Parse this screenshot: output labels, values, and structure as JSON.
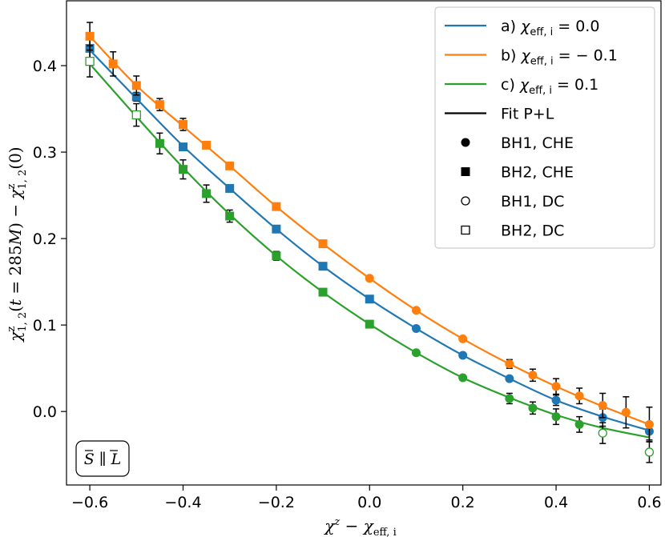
{
  "chart_data": {
    "type": "scatter",
    "xlabel": "χ^z − χ_eff, i",
    "ylabel": "χ^z_1, 2(t = 285M) − χ^z_1, 2(0)",
    "xlim": [
      -0.65,
      0.625
    ],
    "ylim": [
      -0.085,
      0.475
    ],
    "x_ticks": [
      -0.6,
      -0.4,
      -0.2,
      0.0,
      0.2,
      0.4,
      0.6
    ],
    "x_tick_labels": [
      "−0.6",
      "−0.4",
      "−0.2",
      "0.0",
      "0.2",
      "0.4",
      "0.6"
    ],
    "y_ticks": [
      0.0,
      0.1,
      0.2,
      0.3,
      0.4
    ],
    "y_tick_labels": [
      "0.0",
      "0.1",
      "0.2",
      "0.3",
      "0.4"
    ],
    "grid": false,
    "legend_position": "top-right",
    "annotation": "S ∥ L",
    "colors": {
      "a": "#1f77b4",
      "b": "#ff7f0e",
      "c": "#2ca02c",
      "fit": "#000000"
    },
    "series": [
      {
        "key": "a",
        "name": "a) χ_eff, i = 0.0",
        "color": "#1f77b4",
        "fit_x": [
          -0.6,
          -0.5,
          -0.4,
          -0.3,
          -0.2,
          -0.1,
          0.0,
          0.1,
          0.2,
          0.3,
          0.4,
          0.5,
          0.6
        ],
        "fit_y": [
          0.418,
          0.362,
          0.307,
          0.258,
          0.211,
          0.168,
          0.13,
          0.096,
          0.065,
          0.038,
          0.013,
          -0.006,
          -0.022
        ],
        "points": [
          {
            "x": -0.6,
            "y": 0.42,
            "marker": "square",
            "filled": true,
            "err": 0.015
          },
          {
            "x": -0.5,
            "y": 0.364,
            "marker": "square",
            "filled": true,
            "err": 0.005
          },
          {
            "x": -0.4,
            "y": 0.306,
            "marker": "square",
            "filled": true,
            "err": 0.0
          },
          {
            "x": -0.3,
            "y": 0.258,
            "marker": "square",
            "filled": true,
            "err": 0.0
          },
          {
            "x": -0.2,
            "y": 0.211,
            "marker": "square",
            "filled": true,
            "err": 0.0
          },
          {
            "x": -0.1,
            "y": 0.168,
            "marker": "square",
            "filled": true,
            "err": 0.0
          },
          {
            "x": 0.0,
            "y": 0.13,
            "marker": "square",
            "filled": true,
            "err": 0.0
          },
          {
            "x": 0.1,
            "y": 0.096,
            "marker": "circle",
            "filled": true,
            "err": 0.0
          },
          {
            "x": 0.2,
            "y": 0.065,
            "marker": "circle",
            "filled": true,
            "err": 0.0
          },
          {
            "x": 0.3,
            "y": 0.038,
            "marker": "circle",
            "filled": true,
            "err": 0.0
          },
          {
            "x": 0.4,
            "y": 0.013,
            "marker": "circle",
            "filled": true,
            "err": 0.006
          },
          {
            "x": 0.5,
            "y": -0.007,
            "marker": "circle",
            "filled": true,
            "err": 0.01
          },
          {
            "x": 0.6,
            "y": -0.023,
            "marker": "circle",
            "filled": true,
            "err": 0.01
          }
        ]
      },
      {
        "key": "b",
        "name": "b) χ_eff, i = − 0.1",
        "color": "#ff7f0e",
        "fit_x": [
          -0.6,
          -0.5,
          -0.4,
          -0.3,
          -0.2,
          -0.1,
          0.0,
          0.1,
          0.2,
          0.3,
          0.4,
          0.5,
          0.6
        ],
        "fit_y": [
          0.434,
          0.377,
          0.33,
          0.284,
          0.237,
          0.194,
          0.154,
          0.117,
          0.084,
          0.055,
          0.029,
          0.006,
          -0.015
        ],
        "points": [
          {
            "x": -0.6,
            "y": 0.434,
            "marker": "square",
            "filled": true,
            "err": 0.016
          },
          {
            "x": -0.55,
            "y": 0.402,
            "marker": "square",
            "filled": true,
            "err": 0.014
          },
          {
            "x": -0.5,
            "y": 0.377,
            "marker": "square",
            "filled": true,
            "err": 0.011
          },
          {
            "x": -0.45,
            "y": 0.355,
            "marker": "square",
            "filled": true,
            "err": 0.007
          },
          {
            "x": -0.4,
            "y": 0.332,
            "marker": "square",
            "filled": true,
            "err": 0.007
          },
          {
            "x": -0.35,
            "y": 0.308,
            "marker": "square",
            "filled": true,
            "err": 0.0
          },
          {
            "x": -0.3,
            "y": 0.284,
            "marker": "square",
            "filled": true,
            "err": 0.0
          },
          {
            "x": -0.2,
            "y": 0.237,
            "marker": "square",
            "filled": true,
            "err": 0.0
          },
          {
            "x": -0.1,
            "y": 0.194,
            "marker": "square",
            "filled": true,
            "err": 0.0
          },
          {
            "x": 0.0,
            "y": 0.154,
            "marker": "circle",
            "filled": true,
            "err": 0.0
          },
          {
            "x": 0.1,
            "y": 0.117,
            "marker": "circle",
            "filled": true,
            "err": 0.0
          },
          {
            "x": 0.2,
            "y": 0.084,
            "marker": "circle",
            "filled": true,
            "err": 0.0
          },
          {
            "x": 0.3,
            "y": 0.055,
            "marker": "circle",
            "filled": true,
            "err": 0.005
          },
          {
            "x": 0.35,
            "y": 0.042,
            "marker": "circle",
            "filled": true,
            "err": 0.007
          },
          {
            "x": 0.4,
            "y": 0.029,
            "marker": "circle",
            "filled": true,
            "err": 0.009
          },
          {
            "x": 0.45,
            "y": 0.018,
            "marker": "circle",
            "filled": true,
            "err": 0.009
          },
          {
            "x": 0.5,
            "y": 0.007,
            "marker": "circle",
            "filled": true,
            "err": 0.014
          },
          {
            "x": 0.55,
            "y": -0.001,
            "marker": "circle",
            "filled": true,
            "err": 0.018
          },
          {
            "x": 0.6,
            "y": -0.015,
            "marker": "circle",
            "filled": true,
            "err": 0.02
          }
        ]
      },
      {
        "key": "c",
        "name": "c) χ_eff, i = 0.1",
        "color": "#2ca02c",
        "fit_x": [
          -0.6,
          -0.5,
          -0.4,
          -0.3,
          -0.2,
          -0.1,
          0.0,
          0.1,
          0.2,
          0.3,
          0.4,
          0.5,
          0.6
        ],
        "fit_y": [
          0.402,
          0.341,
          0.282,
          0.228,
          0.18,
          0.138,
          0.101,
          0.068,
          0.039,
          0.016,
          -0.004,
          -0.019,
          -0.03
        ],
        "points": [
          {
            "x": -0.6,
            "y": 0.405,
            "marker": "square",
            "filled": false,
            "err": 0.018
          },
          {
            "x": -0.5,
            "y": 0.343,
            "marker": "square",
            "filled": false,
            "err": 0.013
          },
          {
            "x": -0.45,
            "y": 0.31,
            "marker": "square",
            "filled": true,
            "err": 0.012
          },
          {
            "x": -0.4,
            "y": 0.28,
            "marker": "square",
            "filled": true,
            "err": 0.011
          },
          {
            "x": -0.35,
            "y": 0.252,
            "marker": "square",
            "filled": true,
            "err": 0.01
          },
          {
            "x": -0.3,
            "y": 0.226,
            "marker": "square",
            "filled": true,
            "err": 0.007
          },
          {
            "x": -0.2,
            "y": 0.18,
            "marker": "square",
            "filled": true,
            "err": 0.005
          },
          {
            "x": -0.1,
            "y": 0.138,
            "marker": "square",
            "filled": true,
            "err": 0.0
          },
          {
            "x": 0.0,
            "y": 0.101,
            "marker": "square",
            "filled": true,
            "err": 0.0
          },
          {
            "x": 0.1,
            "y": 0.068,
            "marker": "circle",
            "filled": true,
            "err": 0.0
          },
          {
            "x": 0.2,
            "y": 0.039,
            "marker": "circle",
            "filled": true,
            "err": 0.0
          },
          {
            "x": 0.3,
            "y": 0.015,
            "marker": "circle",
            "filled": true,
            "err": 0.006
          },
          {
            "x": 0.35,
            "y": 0.004,
            "marker": "circle",
            "filled": true,
            "err": 0.007
          },
          {
            "x": 0.4,
            "y": -0.006,
            "marker": "circle",
            "filled": true,
            "err": 0.009
          },
          {
            "x": 0.45,
            "y": -0.015,
            "marker": "circle",
            "filled": true,
            "err": 0.009
          },
          {
            "x": 0.5,
            "y": -0.025,
            "marker": "circle",
            "filled": false,
            "err": 0.012
          },
          {
            "x": 0.6,
            "y": -0.047,
            "marker": "circle",
            "filled": false,
            "err": 0.012
          }
        ]
      }
    ],
    "legend": [
      {
        "kind": "line",
        "color": "#1f77b4",
        "label": "a) χ_eff, i = 0.0"
      },
      {
        "kind": "line",
        "color": "#ff7f0e",
        "label": "b) χ_eff, i = − 0.1"
      },
      {
        "kind": "line",
        "color": "#2ca02c",
        "label": "c) χ_eff, i = 0.1"
      },
      {
        "kind": "line",
        "color": "#000000",
        "label": "Fit P+L"
      },
      {
        "kind": "marker",
        "marker": "circle",
        "filled": true,
        "label": "BH1, CHE"
      },
      {
        "kind": "marker",
        "marker": "square",
        "filled": true,
        "label": "BH2, CHE"
      },
      {
        "kind": "marker",
        "marker": "circle",
        "filled": false,
        "label": "BH1, DC"
      },
      {
        "kind": "marker",
        "marker": "square",
        "filled": false,
        "label": "BH2, DC"
      }
    ]
  }
}
